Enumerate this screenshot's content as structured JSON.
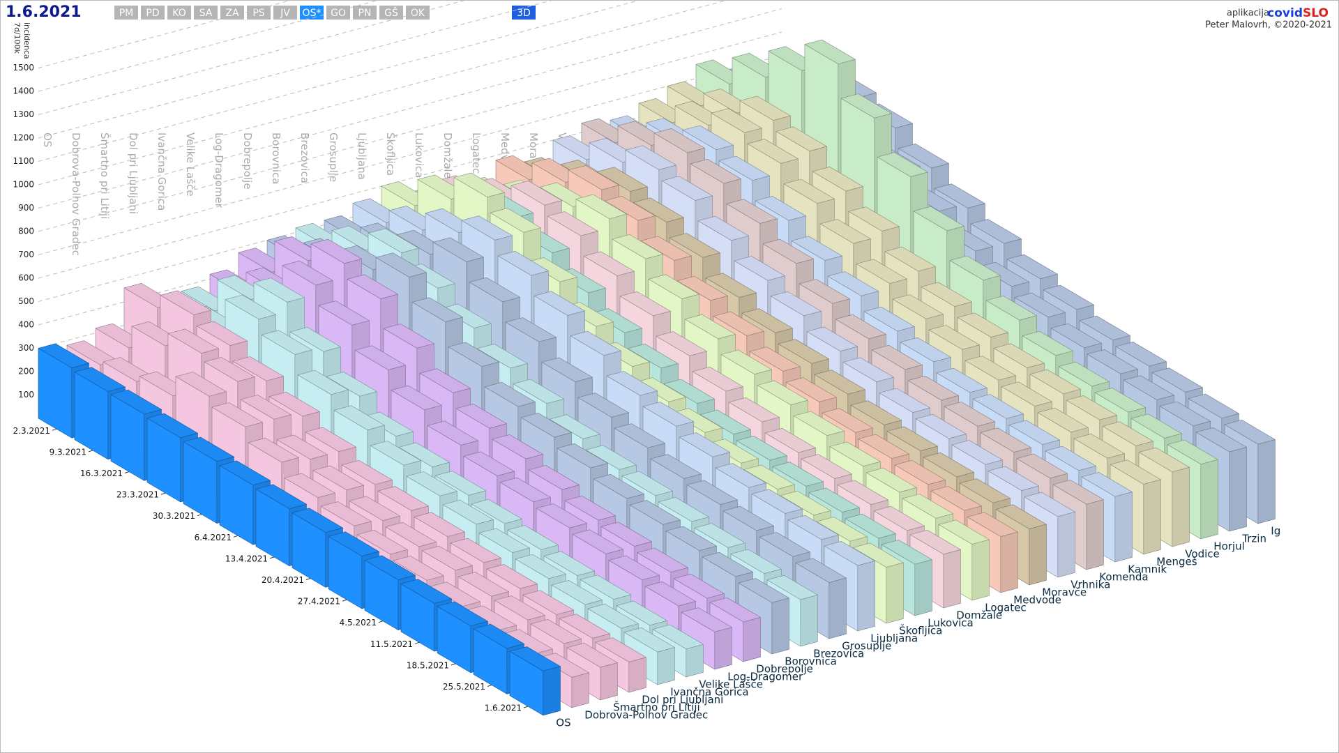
{
  "header": {
    "date": "1.6.2021",
    "buttons": [
      "PM",
      "PD",
      "KO",
      "SA",
      "ZA",
      "PS",
      "JV",
      "OS*",
      "GO",
      "PN",
      "GŠ",
      "OK"
    ],
    "active_button": "OS*",
    "mode_button": "3D"
  },
  "credits": {
    "prefix": "aplikacija",
    "app_a": "covid",
    "app_b": "SLO",
    "author": "Peter Malovrh, ©2020-2021"
  },
  "chart_data": {
    "type": "bar3d",
    "y_label": [
      "7d/100k",
      "incidenca"
    ],
    "x": [
      "2.3.2021",
      "9.3.2021",
      "16.3.2021",
      "23.3.2021",
      "30.3.2021",
      "6.4.2021",
      "13.4.2021",
      "20.4.2021",
      "27.4.2021",
      "4.5.2021",
      "11.5.2021",
      "18.5.2021",
      "25.5.2021",
      "1.6.2021"
    ],
    "ylim": [
      0,
      1600
    ],
    "yticks": [
      100,
      200,
      300,
      400,
      500,
      600,
      700,
      800,
      900,
      1000,
      1100,
      1200,
      1300,
      1400,
      1500
    ],
    "grid": true,
    "series": [
      {
        "name": "OS",
        "color": "#1e90ff",
        "values": [
          300,
          290,
          285,
          275,
          265,
          255,
          245,
          235,
          225,
          215,
          205,
          200,
          195,
          190
        ]
      },
      {
        "name": "Dobrova-Polhov Gradec",
        "color": "#f5c6e0",
        "values": [
          280,
          300,
          330,
          420,
          380,
          320,
          260,
          230,
          200,
          180,
          160,
          150,
          140,
          130
        ]
      },
      {
        "name": "Šmartno pri Litiji",
        "color": "#f5c6e0",
        "values": [
          320,
          420,
          480,
          450,
          380,
          300,
          260,
          220,
          200,
          190,
          170,
          160,
          150,
          140
        ]
      },
      {
        "name": "Dol pri Ljubljani",
        "color": "#f5c6e0",
        "values": [
          460,
          520,
          480,
          420,
          360,
          300,
          250,
          230,
          210,
          190,
          170,
          150,
          140,
          130
        ]
      },
      {
        "name": "Ivančna Gorica",
        "color": "#c6eef2",
        "values": [
          350,
          420,
          560,
          500,
          420,
          360,
          300,
          260,
          230,
          200,
          180,
          160,
          150,
          140
        ]
      },
      {
        "name": "Velike Lašče",
        "color": "#c6eef2",
        "values": [
          380,
          520,
          600,
          480,
          380,
          300,
          260,
          230,
          200,
          180,
          160,
          150,
          130,
          120
        ]
      },
      {
        "name": "Log-Dragomer",
        "color": "#d9b8f5",
        "values": [
          420,
          520,
          640,
          560,
          460,
          380,
          320,
          280,
          260,
          240,
          220,
          200,
          180,
          160
        ]
      },
      {
        "name": "Dobrepolje",
        "color": "#d9b8f5",
        "values": [
          480,
          620,
          700,
          640,
          520,
          420,
          360,
          320,
          280,
          240,
          220,
          200,
          180,
          170
        ]
      },
      {
        "name": "Borovnica",
        "color": "#b7c8e4",
        "values": [
          500,
          580,
          640,
          700,
          600,
          500,
          420,
          380,
          340,
          300,
          280,
          260,
          240,
          220
        ]
      },
      {
        "name": "Brezovica",
        "color": "#c6eef2",
        "values": [
          520,
          600,
          680,
          620,
          540,
          460,
          400,
          340,
          300,
          280,
          260,
          240,
          220,
          200
        ]
      },
      {
        "name": "Grosuplje",
        "color": "#b7c8e4",
        "values": [
          520,
          580,
          640,
          700,
          620,
          540,
          460,
          400,
          360,
          320,
          300,
          280,
          260,
          240
        ]
      },
      {
        "name": "Ljubljana",
        "color": "#c9dcf7",
        "values": [
          560,
          620,
          700,
          760,
          700,
          620,
          540,
          460,
          420,
          380,
          340,
          320,
          300,
          280
        ]
      },
      {
        "name": "Škofljica",
        "color": "#e3f7c6",
        "values": [
          600,
          720,
          820,
          760,
          640,
          540,
          460,
          400,
          360,
          320,
          300,
          280,
          260,
          240
        ]
      },
      {
        "name": "Lukovica",
        "color": "#b8e6dc",
        "values": [
          540,
          620,
          700,
          640,
          560,
          480,
          420,
          360,
          320,
          300,
          280,
          260,
          240,
          220
        ]
      },
      {
        "name": "Domžale",
        "color": "#f5d6de",
        "values": [
          560,
          640,
          720,
          680,
          600,
          520,
          440,
          380,
          340,
          300,
          280,
          260,
          240,
          230
        ]
      },
      {
        "name": "Logatec",
        "color": "#e3f7c6",
        "values": [
          520,
          600,
          680,
          720,
          640,
          560,
          480,
          420,
          380,
          340,
          300,
          280,
          260,
          240
        ]
      },
      {
        "name": "Medvode",
        "color": "#f7c9b8",
        "values": [
          580,
          660,
          720,
          680,
          600,
          520,
          460,
          400,
          360,
          320,
          300,
          280,
          260,
          240
        ]
      },
      {
        "name": "Moravče",
        "color": "#d7c8a8",
        "values": [
          540,
          620,
          680,
          640,
          580,
          500,
          440,
          400,
          360,
          320,
          300,
          280,
          260,
          240
        ]
      },
      {
        "name": "Vrhnika",
        "color": "#d5def7",
        "values": [
          600,
          680,
          740,
          700,
          620,
          540,
          480,
          420,
          380,
          340,
          320,
          300,
          280,
          260
        ]
      },
      {
        "name": "Komenda",
        "color": "#e0cccc",
        "values": [
          640,
          720,
          780,
          740,
          660,
          580,
          500,
          440,
          400,
          360,
          340,
          320,
          300,
          280
        ]
      },
      {
        "name": "Kamnik",
        "color": "#c9dcf7",
        "values": [
          620,
          700,
          760,
          720,
          640,
          560,
          500,
          440,
          400,
          360,
          340,
          320,
          300,
          280
        ]
      },
      {
        "name": "Mengeš",
        "color": "#e6e3c0",
        "values": [
          660,
          740,
          800,
          760,
          680,
          600,
          520,
          460,
          420,
          380,
          360,
          340,
          320,
          300
        ]
      },
      {
        "name": "Vodice",
        "color": "#e6e3c0",
        "values": [
          700,
          760,
          820,
          780,
          700,
          620,
          540,
          480,
          440,
          400,
          380,
          360,
          340,
          320
        ]
      },
      {
        "name": "Horjul",
        "color": "#c8ecc8",
        "values": [
          760,
          880,
          1000,
          1120,
          980,
          820,
          680,
          560,
          480,
          420,
          380,
          360,
          340,
          320
        ]
      },
      {
        "name": "Trzin",
        "color": "#b7c8e4",
        "values": [
          700,
          780,
          840,
          800,
          720,
          640,
          560,
          500,
          460,
          420,
          400,
          380,
          360,
          340
        ]
      },
      {
        "name": "Ig",
        "color": "#b7c8e4",
        "values": [
          680,
          760,
          820,
          780,
          700,
          620,
          560,
          500,
          460,
          420,
          400,
          380,
          360,
          340
        ]
      }
    ]
  }
}
